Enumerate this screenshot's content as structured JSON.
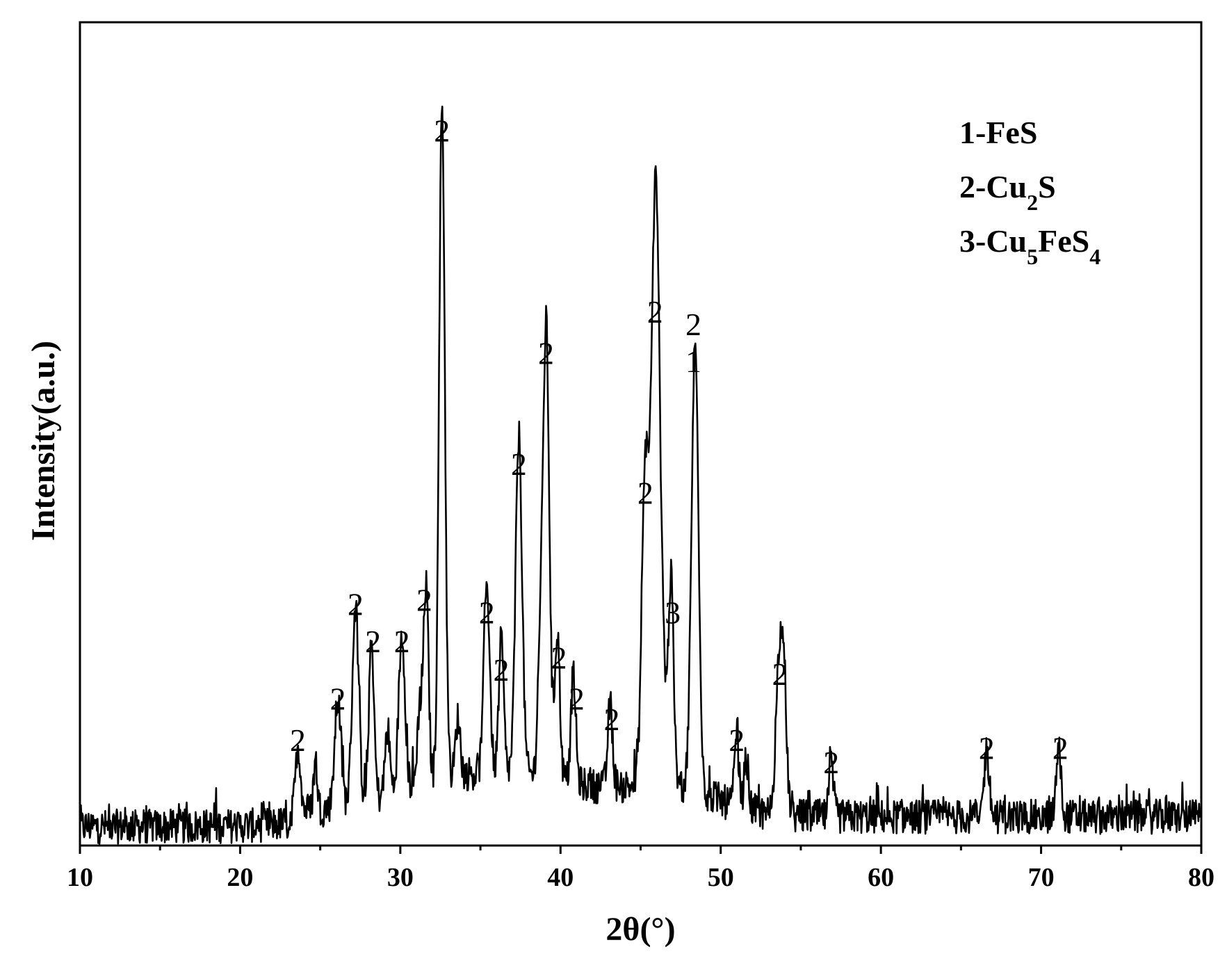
{
  "chart_data": {
    "type": "line",
    "title": "",
    "xlabel": "2θ(°)",
    "ylabel": "Intensity(a.u.)",
    "xlim": [
      10,
      80
    ],
    "ylim": [
      0,
      100
    ],
    "y_ticks_shown": false,
    "x_ticks": [
      10,
      20,
      30,
      40,
      50,
      60,
      70,
      80
    ],
    "x_tick_labels": [
      "10",
      "20",
      "30",
      "40",
      "50",
      "60",
      "70",
      "80"
    ],
    "legend": {
      "placement": "top-right",
      "entries": [
        {
          "prefix": "1-FeS",
          "parts": [
            {
              "t": "1-FeS",
              "sub": false
            }
          ]
        },
        {
          "prefix": "2-Cu2S",
          "parts": [
            {
              "t": "2-Cu",
              "sub": false
            },
            {
              "t": "2",
              "sub": true
            },
            {
              "t": "S",
              "sub": false
            }
          ]
        },
        {
          "prefix": "3-Cu5FeS4",
          "parts": [
            {
              "t": "3-Cu",
              "sub": false
            },
            {
              "t": "5",
              "sub": true
            },
            {
              "t": "FeS",
              "sub": false
            },
            {
              "t": "4",
              "sub": true
            }
          ]
        }
      ]
    },
    "background_level": 3.5,
    "series": [
      {
        "line_color": "#000000",
        "peaks": [
          {
            "x": 23.6,
            "height": 8,
            "width": 0.18
          },
          {
            "x": 24.7,
            "height": 6,
            "width": 0.12
          },
          {
            "x": 26.1,
            "height": 13,
            "width": 0.2
          },
          {
            "x": 27.2,
            "height": 24,
            "width": 0.2
          },
          {
            "x": 28.2,
            "height": 19,
            "width": 0.16
          },
          {
            "x": 29.2,
            "height": 8,
            "width": 0.15
          },
          {
            "x": 30.1,
            "height": 19,
            "width": 0.2
          },
          {
            "x": 31.2,
            "height": 9,
            "width": 0.15
          },
          {
            "x": 31.6,
            "height": 24,
            "width": 0.16
          },
          {
            "x": 32.6,
            "height": 82,
            "width": 0.18
          },
          {
            "x": 33.6,
            "height": 7,
            "width": 0.15
          },
          {
            "x": 35.4,
            "height": 23,
            "width": 0.18
          },
          {
            "x": 36.3,
            "height": 16,
            "width": 0.15
          },
          {
            "x": 37.4,
            "height": 41,
            "width": 0.2
          },
          {
            "x": 38.7,
            "height": 12,
            "width": 0.15
          },
          {
            "x": 39.1,
            "height": 55,
            "width": 0.2
          },
          {
            "x": 39.8,
            "height": 18,
            "width": 0.16
          },
          {
            "x": 40.8,
            "height": 13,
            "width": 0.15
          },
          {
            "x": 43.1,
            "height": 10,
            "width": 0.15
          },
          {
            "x": 45.3,
            "height": 38,
            "width": 0.22
          },
          {
            "x": 45.9,
            "height": 60,
            "width": 0.24
          },
          {
            "x": 46.2,
            "height": 20,
            "width": 0.3
          },
          {
            "x": 46.9,
            "height": 24,
            "width": 0.16
          },
          {
            "x": 48.4,
            "height": 54,
            "width": 0.22
          },
          {
            "x": 51.0,
            "height": 8,
            "width": 0.14
          },
          {
            "x": 51.6,
            "height": 6,
            "width": 0.14
          },
          {
            "x": 53.6,
            "height": 14,
            "width": 0.2
          },
          {
            "x": 53.9,
            "height": 16,
            "width": 0.2
          },
          {
            "x": 56.9,
            "height": 6,
            "width": 0.14
          },
          {
            "x": 66.6,
            "height": 8,
            "width": 0.16
          },
          {
            "x": 71.1,
            "height": 8,
            "width": 0.16
          }
        ]
      }
    ],
    "peak_annotations": [
      {
        "x": 23.6,
        "text": "2",
        "y_label": 11.5
      },
      {
        "x": 26.1,
        "text": "2",
        "y_label": 16.5
      },
      {
        "x": 27.2,
        "text": "2",
        "y_label": 28.0
      },
      {
        "x": 28.3,
        "text": "2",
        "y_label": 23.5
      },
      {
        "x": 30.1,
        "text": "2",
        "y_label": 23.5
      },
      {
        "x": 31.5,
        "text": "2",
        "y_label": 28.5
      },
      {
        "x": 32.6,
        "text": "2",
        "y_label": 85.5
      },
      {
        "x": 35.4,
        "text": "2",
        "y_label": 27.0
      },
      {
        "x": 36.3,
        "text": "2",
        "y_label": 20.0
      },
      {
        "x": 37.4,
        "text": "2",
        "y_label": 45.0
      },
      {
        "x": 39.1,
        "text": "2",
        "y_label": 58.5
      },
      {
        "x": 39.9,
        "text": "2",
        "y_label": 21.5
      },
      {
        "x": 41.0,
        "text": "2",
        "y_label": 16.5
      },
      {
        "x": 43.2,
        "text": "2",
        "y_label": 14.0
      },
      {
        "x": 45.3,
        "text": "2",
        "y_label": 41.5
      },
      {
        "x": 45.9,
        "text": "2",
        "y_label": 63.5
      },
      {
        "x": 47.0,
        "text": "3",
        "y_label": 27.0
      },
      {
        "x": 48.3,
        "text": "2",
        "y_label": 62.0
      },
      {
        "x": 48.3,
        "text": "1",
        "y_label": 57.5
      },
      {
        "x": 51.0,
        "text": "2",
        "y_label": 11.5
      },
      {
        "x": 53.7,
        "text": "2",
        "y_label": 19.5
      },
      {
        "x": 56.9,
        "text": "2",
        "y_label": 8.8
      },
      {
        "x": 66.6,
        "text": "2",
        "y_label": 10.5
      },
      {
        "x": 71.2,
        "text": "2",
        "y_label": 10.5
      }
    ]
  }
}
